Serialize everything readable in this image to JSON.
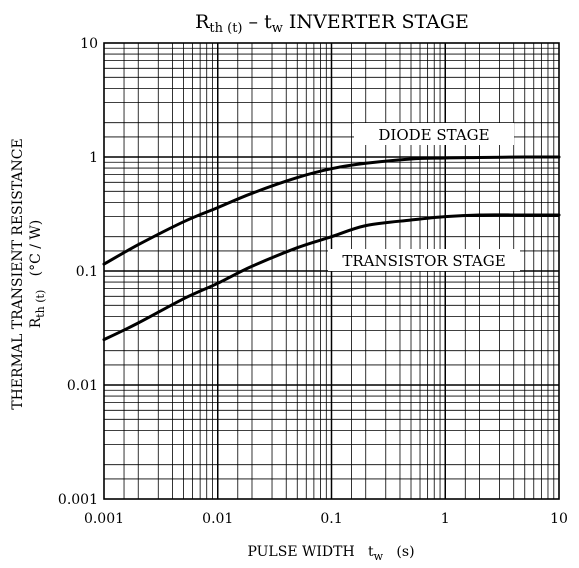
{
  "chart_data": {
    "type": "line",
    "title_parts": {
      "main": "R",
      "main_sub": "th (t)",
      "dash": " – t",
      "dash_sub": "w",
      "rest": " INVERTER STAGE"
    },
    "x_scale": "log",
    "y_scale": "log",
    "xlim": [
      0.001,
      10
    ],
    "ylim": [
      0.001,
      10
    ],
    "grid": true,
    "x_ticks": [
      "0.001",
      "0.01",
      "0.1",
      "1",
      "10"
    ],
    "y_ticks": [
      "0.001",
      "0.01",
      "0.1",
      "1",
      "10"
    ],
    "xlabel": {
      "text": "PULSE WIDTH   t",
      "sub": "w",
      "unit": "   (s)"
    },
    "ylabel": {
      "line1": "THERMAL TRANSIENT RESISTANCE",
      "line2_main": "R",
      "line2_sub": "th (t)",
      "line2_unit": "   (°C / W)"
    },
    "series": [
      {
        "name": "DIODE STAGE",
        "x": [
          0.001,
          0.002,
          0.005,
          0.01,
          0.02,
          0.05,
          0.1,
          0.2,
          0.5,
          1,
          2,
          5,
          10
        ],
        "y": [
          0.115,
          0.17,
          0.27,
          0.36,
          0.48,
          0.66,
          0.79,
          0.88,
          0.96,
          0.98,
          0.99,
          1.0,
          1.0
        ]
      },
      {
        "name": "TRANSISTOR STAGE",
        "x": [
          0.001,
          0.002,
          0.005,
          0.01,
          0.02,
          0.05,
          0.1,
          0.2,
          0.5,
          1,
          2,
          5,
          10
        ],
        "y": [
          0.025,
          0.035,
          0.057,
          0.078,
          0.11,
          0.16,
          0.2,
          0.25,
          0.28,
          0.3,
          0.31,
          0.31,
          0.31
        ]
      }
    ]
  }
}
